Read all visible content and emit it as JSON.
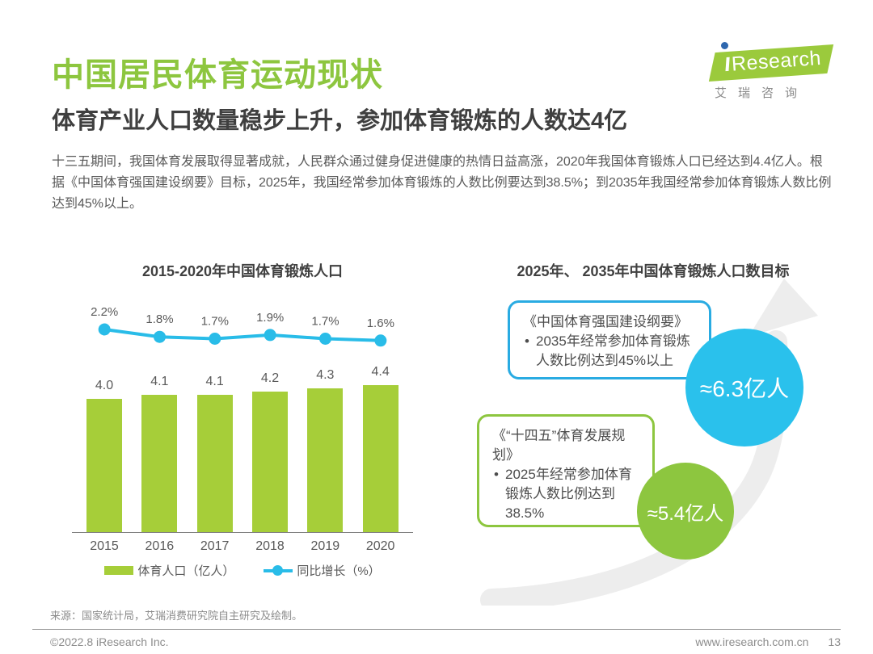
{
  "page": {
    "title": "中国居民体育运动现状",
    "subtitle": "体育产业人口数量稳步上升，参加体育锻炼的人数达4亿",
    "body": "十三五期间，我国体育发展取得显著成就，人民群众通过健身促进健康的热情日益高涨，2020年我国体育锻炼人口已经达到4.4亿人。根据《中国体育强国建设纲要》目标，2025年，我国经常参加体育锻炼的人数比例要达到38.5%；到2035年我国经常参加体育锻炼人数比例达到45%以上。"
  },
  "logo": {
    "name_latin_rest": "Research",
    "name_cn": "艾瑞咨询"
  },
  "chart_data": {
    "type": "bar",
    "title": "2015-2020年中国体育锻炼人口",
    "categories": [
      "2015",
      "2016",
      "2017",
      "2018",
      "2019",
      "2020"
    ],
    "series": [
      {
        "name": "体育人口（亿人）",
        "type": "bar",
        "values": [
          4.0,
          4.1,
          4.1,
          4.2,
          4.3,
          4.4
        ],
        "labels": [
          "4.0",
          "4.1",
          "4.1",
          "4.2",
          "4.3",
          "4.4"
        ],
        "color": "#a6ce39"
      },
      {
        "name": "同比增长（%）",
        "type": "line",
        "values": [
          2.2,
          1.8,
          1.7,
          1.9,
          1.7,
          1.6
        ],
        "labels": [
          "2.2%",
          "1.8%",
          "1.7%",
          "1.9%",
          "1.7%",
          "1.6%"
        ],
        "color": "#29bce8"
      }
    ],
    "xlabel": "",
    "ylabel": "",
    "legend_position": "bottom",
    "grid": false
  },
  "target": {
    "title": "2025年、 2035年中国体育锻炼人口数目标",
    "box_2035": {
      "heading": "《中国体育强国建设纲要》",
      "bullet": "2035年经常参加体育锻炼人数比例达到45%以上",
      "border_color": "#29abe2"
    },
    "circle_2035": {
      "label": "≈6.3亿人",
      "color": "#2ac1ec"
    },
    "box_2025": {
      "heading": "《“十四五”体育发展规划》",
      "bullet": "2025年经常参加体育锻炼人数比例达到38.5%",
      "border_color": "#8dc63f"
    },
    "circle_2025": {
      "label": "≈5.4亿人",
      "color": "#8dc63f"
    }
  },
  "footer": {
    "source": "来源：国家统计局，艾瑞消费研究院自主研究及绘制。",
    "copyright": "©2022.8 iResearch Inc.",
    "website": "www.iresearch.com.cn",
    "page_number": "13"
  },
  "colors": {
    "brand_green": "#8dc63f",
    "bar_green": "#a6ce39",
    "line_blue": "#29bce8",
    "circle_blue": "#2ac1ec",
    "swoosh_gray": "#ededed"
  }
}
